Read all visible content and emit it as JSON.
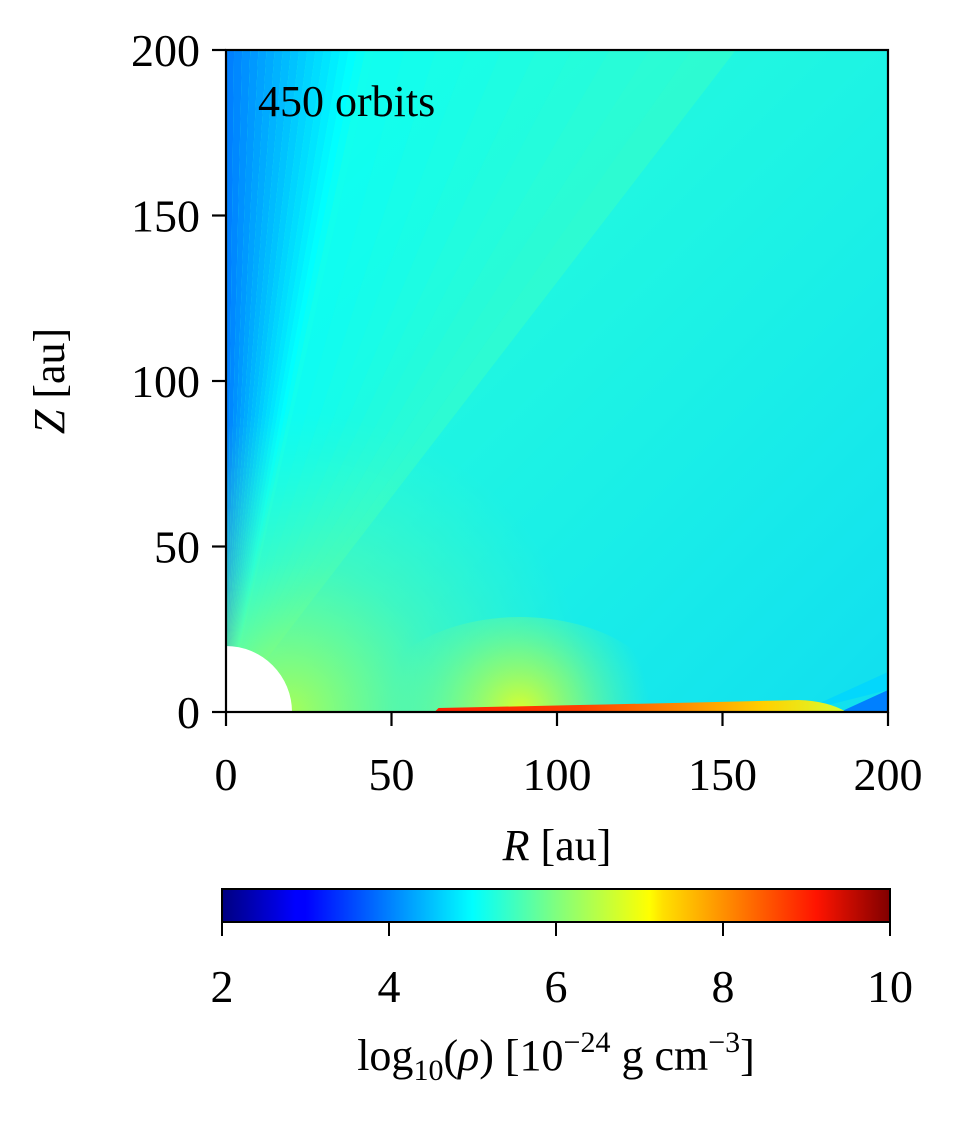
{
  "chart_data": {
    "type": "heatmap",
    "annotation": "450 orbits",
    "xlabel": {
      "var": "R",
      "unit": " [au]"
    },
    "ylabel": {
      "var": "Z",
      "unit": " [au]"
    },
    "xlim": [
      0,
      200
    ],
    "ylim": [
      0,
      200
    ],
    "x_ticks": [
      0,
      50,
      100,
      150,
      200
    ],
    "y_ticks": [
      0,
      50,
      100,
      150,
      200
    ],
    "x_tick_labels": [
      "0",
      "50",
      "100",
      "150",
      "200"
    ],
    "y_tick_labels": [
      "0",
      "50",
      "100",
      "150",
      "200"
    ],
    "inner_boundary_radius_au": 20,
    "colormap": "jet",
    "colorbar": {
      "orientation": "horizontal",
      "range": [
        2,
        10
      ],
      "ticks": [
        2,
        4,
        6,
        8,
        10
      ],
      "tick_labels": [
        "2",
        "4",
        "6",
        "8",
        "10"
      ],
      "label": {
        "prefix": "log",
        "sub": "10",
        "var": "ρ",
        "unit_pre": " [10",
        "unit_exp": "−24",
        "unit_mid": " g cm",
        "unit_exp2": "−3",
        "unit_post": "]"
      }
    },
    "features": {
      "background_density": 5.5,
      "polar_axis_density": 4.0,
      "disk_midplane_density": 9.0,
      "disk_inner_edge_au": 63,
      "disk_outer_edge_au": 185
    }
  }
}
